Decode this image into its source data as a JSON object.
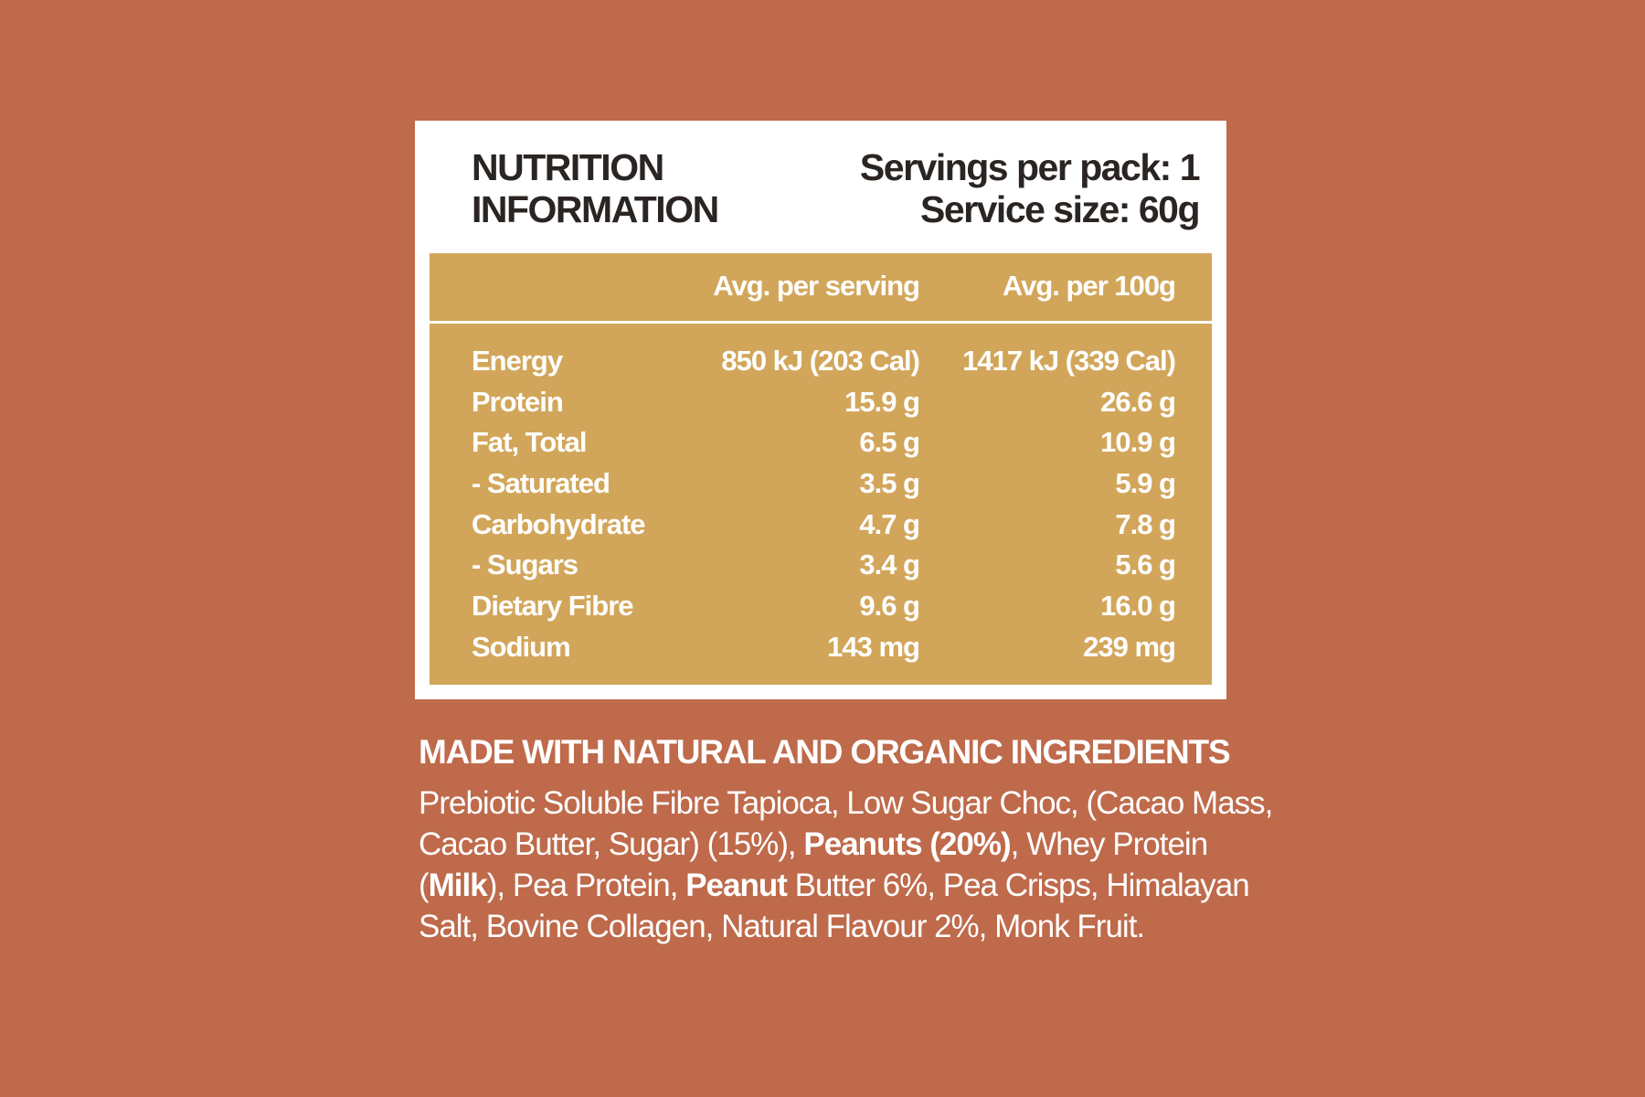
{
  "label": {
    "title_line1": "NUTRITION",
    "title_line2": "INFORMATION",
    "servings_per_pack": "Servings per pack: 1",
    "service_size": "Service size: 60g"
  },
  "table": {
    "headers": [
      "",
      "Avg. per serving",
      "Avg. per 100g"
    ],
    "rows": [
      {
        "name": "Energy",
        "per_serving": "850 kJ (203 Cal)",
        "per_100g": "1417 kJ (339 Cal)"
      },
      {
        "name": "Protein",
        "per_serving": "15.9 g",
        "per_100g": "26.6 g"
      },
      {
        "name": "Fat, Total",
        "per_serving": "6.5 g",
        "per_100g": "10.9 g"
      },
      {
        "name": "- Saturated",
        "per_serving": "3.5 g",
        "per_100g": "5.9 g"
      },
      {
        "name": "Carbohydrate",
        "per_serving": "4.7 g",
        "per_100g": "7.8 g"
      },
      {
        "name": "- Sugars",
        "per_serving": "3.4 g",
        "per_100g": "5.6 g"
      },
      {
        "name": "Dietary Fibre",
        "per_serving": "9.6 g",
        "per_100g": "16.0 g"
      },
      {
        "name": "Sodium",
        "per_serving": "143 mg",
        "per_100g": "239 mg"
      }
    ]
  },
  "ingredients": {
    "heading": "MADE WITH NATURAL AND ORGANIC INGREDIENTS",
    "l1": "Prebiotic Soluble Fibre Tapioca, Low Sugar Choc, (Cacao Mass,",
    "l2a": "Cacao Butter, Sugar) (15%), ",
    "l2b": "Peanuts (20%)",
    "l2c": ", Whey Protein",
    "l3a": "(",
    "l3b": "Milk",
    "l3c": "), Pea Protein, ",
    "l3d": "Peanut",
    "l3e": " Butter 6%, Pea Crisps, Himalayan",
    "l4": "Salt, Bovine Collagen, Natural Flavour 2%, Monk Fruit."
  },
  "colors": {
    "background": "#BE6A4B",
    "panel": "#FFFFFF",
    "table": "#D2A65A",
    "title_text": "#2A2522"
  }
}
